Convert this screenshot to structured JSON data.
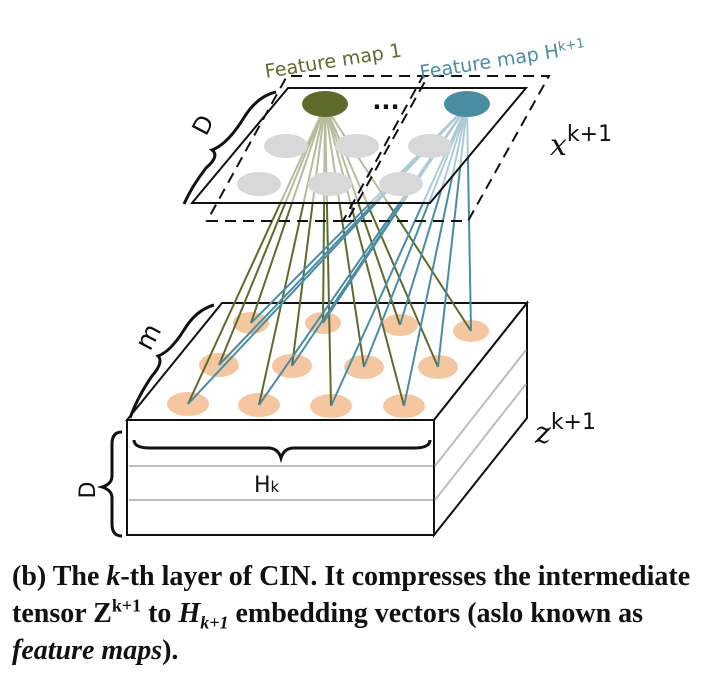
{
  "diagram": {
    "feature_map_1_label": "Feature map 1",
    "feature_map_h_label": "Feature map H",
    "feature_map_h_sub": "k+1",
    "ellipsis": "...",
    "x_label_base": "x",
    "x_label_sup": "k+1",
    "z_label_base": "z",
    "z_label_sup": "k+1",
    "d_top_label": "D",
    "m_label": "m",
    "hk_label_base": "H",
    "hk_label_sub": "k",
    "d_bottom_label": "D",
    "colors": {
      "olive": "#5e6b2c",
      "teal": "#4a8da3",
      "orange": "#f5c7a0",
      "gray": "#d8d8d8"
    }
  },
  "caption": {
    "prefix": "(b) The ",
    "k": "k",
    "after_k": "-th layer of CIN. It compresses the intermediate tensor Z",
    "z_sup": "k+1",
    "to": " to ",
    "h": "H",
    "h_sub": "k+1",
    "after_h": " embedding vectors (aslo known as ",
    "feature_maps": "feature maps",
    "suffix": ")."
  }
}
